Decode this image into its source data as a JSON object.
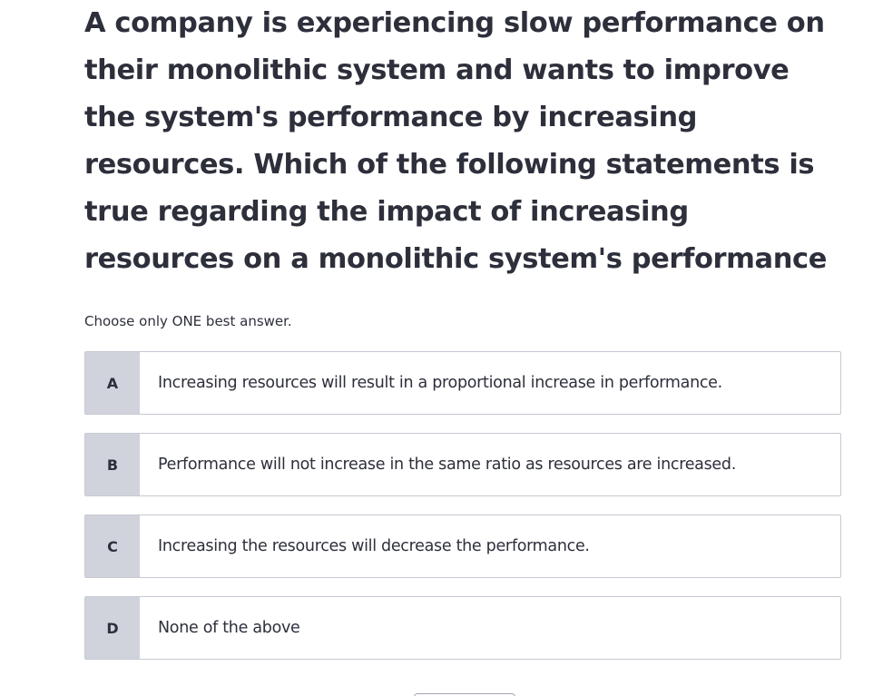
{
  "question": {
    "text": "A company is experiencing slow performance on their monolithic system and wants to improve the system's performance by increasing resources. Which of the following statements is true regarding the impact of increasing resources on a monolithic system's performance"
  },
  "instruction": "Choose only ONE best answer.",
  "options": [
    {
      "letter": "A",
      "text": "Increasing resources will result in a proportional increase in performance."
    },
    {
      "letter": "B",
      "text": "Performance will not increase in the same ratio as resources are increased."
    },
    {
      "letter": "C",
      "text": "Increasing the resources will decrease the performance."
    },
    {
      "letter": "D",
      "text": "None of the above"
    }
  ],
  "colors": {
    "text": "#2d2f3b",
    "letter_bg": "#d1d3dc",
    "border": "#c7c9d3"
  }
}
